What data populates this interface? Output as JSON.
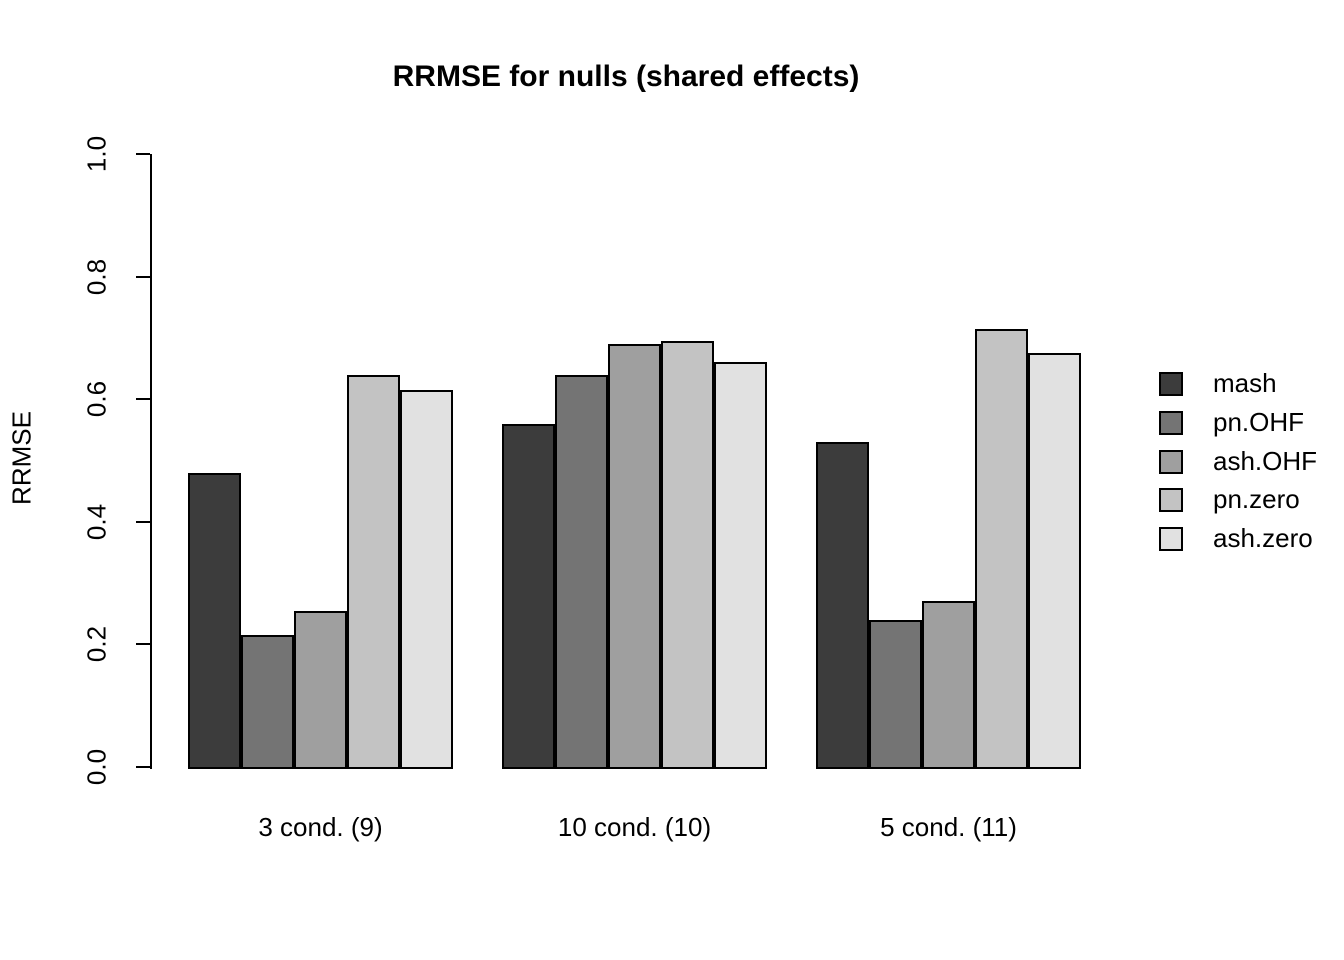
{
  "chart_data": {
    "type": "bar",
    "title": "RRMSE for nulls (shared effects)",
    "ylabel": "RRMSE",
    "xlabel": "",
    "categories": [
      "3 cond. (9)",
      "10 cond. (10)",
      "5 cond. (11)"
    ],
    "series": [
      {
        "name": "mash",
        "color": "#3C3C3C",
        "values": [
          0.48,
          0.56,
          0.53
        ]
      },
      {
        "name": "pn.OHF",
        "color": "#747474",
        "values": [
          0.215,
          0.64,
          0.24
        ]
      },
      {
        "name": "ash.OHF",
        "color": "#9F9F9F",
        "values": [
          0.255,
          0.69,
          0.27
        ]
      },
      {
        "name": "pn.zero",
        "color": "#C3C3C3",
        "values": [
          0.64,
          0.695,
          0.715
        ]
      },
      {
        "name": "ash.zero",
        "color": "#E1E1E1",
        "values": [
          0.615,
          0.66,
          0.675
        ]
      }
    ],
    "ylim": [
      0,
      1
    ],
    "y_ticks": [
      "0.0",
      "0.2",
      "0.4",
      "0.6",
      "0.8",
      "1.0"
    ],
    "grid": false,
    "legend_position": "right",
    "bar_border_color": "#000000",
    "background_color": "#FFFFFF"
  }
}
